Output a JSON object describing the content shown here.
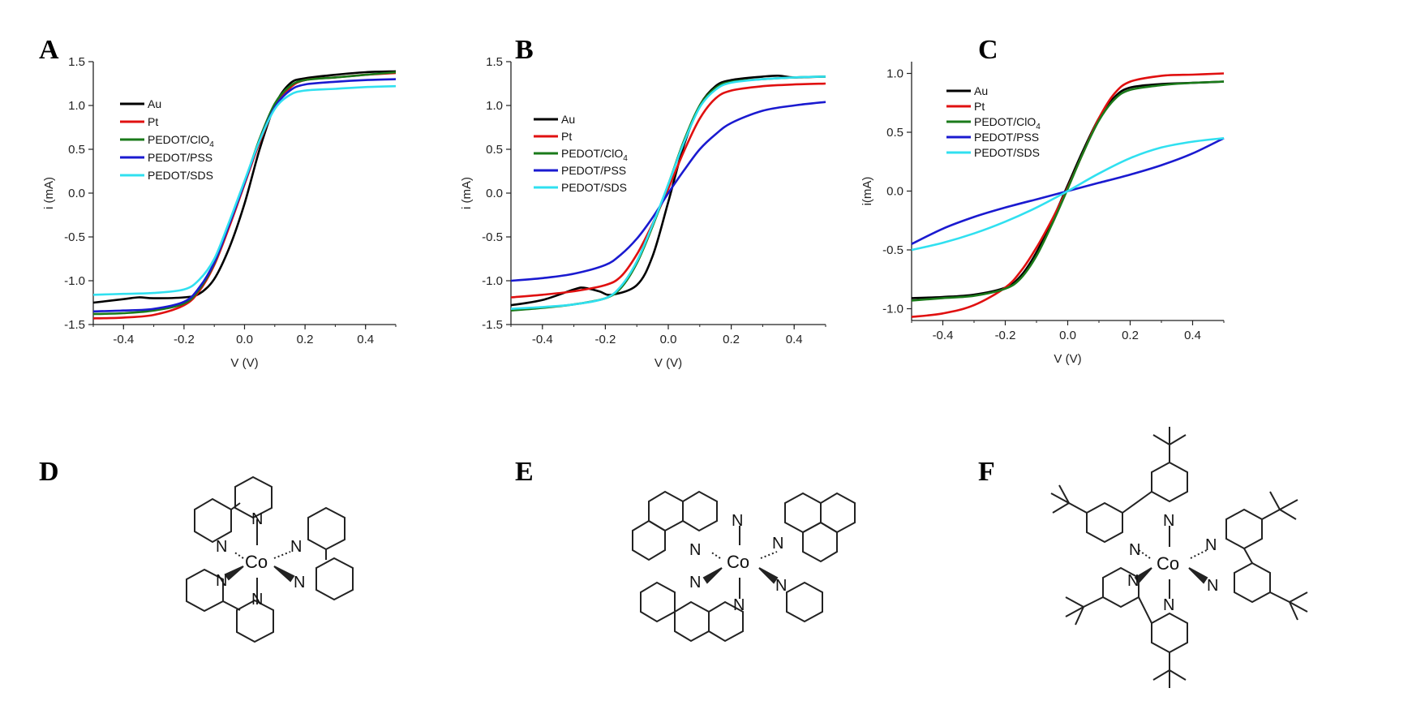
{
  "figure": {
    "panel_labels": [
      "A",
      "B",
      "C",
      "D",
      "E",
      "F"
    ]
  },
  "chart_data": [
    {
      "panel": "A",
      "type": "line",
      "xlabel": "V (V)",
      "ylabel": "i (mA)",
      "xlim": [
        -0.5,
        0.5
      ],
      "ylim": [
        -1.5,
        1.5
      ],
      "xticks": [
        -0.4,
        -0.2,
        0.0,
        0.2,
        0.4
      ],
      "xticklabels": [
        "-0.4",
        "-0.2",
        "0.0",
        "0.2",
        "0.4"
      ],
      "yticks": [
        -1.5,
        -1.0,
        -0.5,
        0.0,
        0.5,
        1.0,
        1.5
      ],
      "yticklabels": [
        "-1.5",
        "-1.0",
        "-0.5",
        "0.0",
        "0.5",
        "1.0",
        "1.5"
      ],
      "legend_position": "upper-left",
      "series": [
        {
          "name": "Au",
          "color": "#000000",
          "x": [
            -0.5,
            -0.4,
            -0.35,
            -0.3,
            -0.2,
            -0.15,
            -0.1,
            -0.05,
            0.0,
            0.05,
            0.1,
            0.15,
            0.2,
            0.3,
            0.4,
            0.5
          ],
          "y": [
            -1.25,
            -1.21,
            -1.19,
            -1.2,
            -1.19,
            -1.15,
            -0.98,
            -0.62,
            -0.12,
            0.5,
            1.0,
            1.25,
            1.31,
            1.35,
            1.38,
            1.39
          ]
        },
        {
          "name": "Pt",
          "color": "#e01010",
          "x": [
            -0.5,
            -0.4,
            -0.3,
            -0.2,
            -0.15,
            -0.1,
            -0.05,
            0.0,
            0.05,
            0.1,
            0.15,
            0.2,
            0.3,
            0.4,
            0.5
          ],
          "y": [
            -1.43,
            -1.42,
            -1.39,
            -1.28,
            -1.12,
            -0.82,
            -0.38,
            0.1,
            0.58,
            0.98,
            1.2,
            1.29,
            1.32,
            1.35,
            1.37
          ]
        },
        {
          "name": "PEDOT/ClO4",
          "color": "#1a7a1a",
          "x": [
            -0.5,
            -0.4,
            -0.3,
            -0.2,
            -0.15,
            -0.1,
            -0.05,
            0.0,
            0.05,
            0.1,
            0.15,
            0.2,
            0.3,
            0.4,
            0.5
          ],
          "y": [
            -1.38,
            -1.37,
            -1.34,
            -1.26,
            -1.1,
            -0.8,
            -0.35,
            0.12,
            0.62,
            1.02,
            1.22,
            1.29,
            1.32,
            1.35,
            1.38
          ]
        },
        {
          "name": "PEDOT/PSS",
          "color": "#1a1ad0",
          "x": [
            -0.5,
            -0.4,
            -0.3,
            -0.2,
            -0.15,
            -0.1,
            -0.05,
            0.0,
            0.05,
            0.1,
            0.15,
            0.2,
            0.3,
            0.4,
            0.5
          ],
          "y": [
            -1.35,
            -1.34,
            -1.32,
            -1.24,
            -1.08,
            -0.79,
            -0.35,
            0.12,
            0.6,
            0.98,
            1.17,
            1.24,
            1.27,
            1.29,
            1.3
          ]
        },
        {
          "name": "PEDOT/SDS",
          "color": "#30e0f0",
          "x": [
            -0.5,
            -0.4,
            -0.3,
            -0.2,
            -0.15,
            -0.1,
            -0.05,
            0.0,
            0.05,
            0.1,
            0.15,
            0.2,
            0.3,
            0.4,
            0.5
          ],
          "y": [
            -1.16,
            -1.15,
            -1.14,
            -1.1,
            -0.99,
            -0.75,
            -0.32,
            0.14,
            0.6,
            0.96,
            1.12,
            1.17,
            1.19,
            1.21,
            1.22
          ]
        }
      ]
    },
    {
      "panel": "B",
      "type": "line",
      "xlabel": "V (V)",
      "ylabel": "i (mA)",
      "xlim": [
        -0.5,
        0.5
      ],
      "ylim": [
        -1.5,
        1.5
      ],
      "xticks": [
        -0.4,
        -0.2,
        0.0,
        0.2,
        0.4
      ],
      "xticklabels": [
        "-0.4",
        "-0.2",
        "0.0",
        "0.2",
        "0.4"
      ],
      "yticks": [
        -1.5,
        -1.0,
        -0.5,
        0.0,
        0.5,
        1.0,
        1.5
      ],
      "yticklabels": [
        "-1.5",
        "-1.0",
        "-0.5",
        "0.0",
        "0.5",
        "1.0",
        "1.5"
      ],
      "legend_position": "middle-left",
      "series": [
        {
          "name": "Au",
          "color": "#000000",
          "x": [
            -0.5,
            -0.4,
            -0.3,
            -0.27,
            -0.22,
            -0.18,
            -0.1,
            -0.05,
            0.0,
            0.05,
            0.1,
            0.15,
            0.2,
            0.3,
            0.35,
            0.4,
            0.5
          ],
          "y": [
            -1.28,
            -1.22,
            -1.1,
            -1.08,
            -1.12,
            -1.16,
            -1.05,
            -0.72,
            -0.1,
            0.55,
            1.0,
            1.22,
            1.29,
            1.33,
            1.34,
            1.32,
            1.33
          ]
        },
        {
          "name": "Pt",
          "color": "#e01010",
          "x": [
            -0.5,
            -0.4,
            -0.3,
            -0.2,
            -0.15,
            -0.1,
            -0.05,
            0.0,
            0.05,
            0.1,
            0.15,
            0.2,
            0.3,
            0.4,
            0.5
          ],
          "y": [
            -1.19,
            -1.16,
            -1.12,
            -1.05,
            -0.95,
            -0.7,
            -0.35,
            0.05,
            0.48,
            0.85,
            1.08,
            1.17,
            1.22,
            1.24,
            1.25
          ]
        },
        {
          "name": "PEDOT/ClO4",
          "color": "#1a7a1a",
          "x": [
            -0.5,
            -0.4,
            -0.3,
            -0.2,
            -0.15,
            -0.1,
            -0.05,
            0.0,
            0.05,
            0.1,
            0.15,
            0.2,
            0.3,
            0.4,
            0.5
          ],
          "y": [
            -1.34,
            -1.31,
            -1.27,
            -1.2,
            -1.08,
            -0.8,
            -0.38,
            0.1,
            0.6,
            1.0,
            1.2,
            1.27,
            1.3,
            1.32,
            1.33
          ]
        },
        {
          "name": "PEDOT/PSS",
          "color": "#1a1ad0",
          "x": [
            -0.5,
            -0.4,
            -0.3,
            -0.2,
            -0.15,
            -0.1,
            -0.05,
            0.0,
            0.05,
            0.1,
            0.15,
            0.2,
            0.3,
            0.4,
            0.5
          ],
          "y": [
            -1.0,
            -0.97,
            -0.92,
            -0.82,
            -0.7,
            -0.52,
            -0.28,
            0.0,
            0.26,
            0.5,
            0.67,
            0.8,
            0.94,
            1.0,
            1.04
          ]
        },
        {
          "name": "PEDOT/SDS",
          "color": "#30e0f0",
          "x": [
            -0.5,
            -0.4,
            -0.3,
            -0.2,
            -0.15,
            -0.1,
            -0.05,
            0.0,
            0.05,
            0.1,
            0.15,
            0.2,
            0.3,
            0.4,
            0.5
          ],
          "y": [
            -1.32,
            -1.3,
            -1.27,
            -1.2,
            -1.06,
            -0.78,
            -0.36,
            0.1,
            0.58,
            0.98,
            1.18,
            1.26,
            1.3,
            1.32,
            1.33
          ]
        }
      ]
    },
    {
      "panel": "C",
      "type": "line",
      "xlabel": "V (V)",
      "ylabel": "i(mA)",
      "xlim": [
        -0.5,
        0.5
      ],
      "ylim": [
        -1.1,
        1.1
      ],
      "xticks": [
        -0.4,
        -0.2,
        0.0,
        0.2,
        0.4
      ],
      "xticklabels": [
        "-0.4",
        "-0.2",
        "0.0",
        "0.2",
        "0.4"
      ],
      "yticks": [
        -1.0,
        -0.5,
        0.0,
        0.5,
        1.0
      ],
      "yticklabels": [
        "-1.0",
        "-0.5",
        "0.0",
        "0.5",
        "1.0"
      ],
      "legend_position": "upper-left",
      "series": [
        {
          "name": "Au",
          "color": "#000000",
          "x": [
            -0.5,
            -0.4,
            -0.3,
            -0.2,
            -0.15,
            -0.1,
            -0.05,
            0.0,
            0.05,
            0.1,
            0.15,
            0.2,
            0.3,
            0.4,
            0.5
          ],
          "y": [
            -0.91,
            -0.9,
            -0.88,
            -0.82,
            -0.72,
            -0.52,
            -0.25,
            0.05,
            0.35,
            0.62,
            0.8,
            0.88,
            0.91,
            0.92,
            0.93
          ]
        },
        {
          "name": "Pt",
          "color": "#e01010",
          "x": [
            -0.5,
            -0.4,
            -0.3,
            -0.2,
            -0.15,
            -0.1,
            -0.05,
            0.0,
            0.05,
            0.1,
            0.15,
            0.2,
            0.3,
            0.4,
            0.5
          ],
          "y": [
            -1.07,
            -1.04,
            -0.97,
            -0.82,
            -0.68,
            -0.48,
            -0.24,
            0.03,
            0.33,
            0.62,
            0.83,
            0.93,
            0.98,
            0.99,
            1.0
          ]
        },
        {
          "name": "PEDOT/ClO4",
          "color": "#1a7a1a",
          "x": [
            -0.5,
            -0.4,
            -0.3,
            -0.2,
            -0.15,
            -0.1,
            -0.05,
            0.0,
            0.05,
            0.1,
            0.15,
            0.2,
            0.3,
            0.4,
            0.5
          ],
          "y": [
            -0.93,
            -0.91,
            -0.89,
            -0.83,
            -0.74,
            -0.55,
            -0.28,
            0.02,
            0.33,
            0.6,
            0.78,
            0.86,
            0.9,
            0.92,
            0.93
          ]
        },
        {
          "name": "PEDOT/PSS",
          "color": "#1a1ad0",
          "x": [
            -0.5,
            -0.4,
            -0.3,
            -0.2,
            -0.1,
            0.0,
            0.1,
            0.2,
            0.3,
            0.4,
            0.5
          ],
          "y": [
            -0.45,
            -0.32,
            -0.22,
            -0.14,
            -0.07,
            0.0,
            0.07,
            0.14,
            0.22,
            0.32,
            0.45
          ]
        },
        {
          "name": "PEDOT/SDS",
          "color": "#30e0f0",
          "x": [
            -0.5,
            -0.4,
            -0.3,
            -0.2,
            -0.1,
            0.0,
            0.1,
            0.2,
            0.3,
            0.4,
            0.5
          ],
          "y": [
            -0.5,
            -0.44,
            -0.36,
            -0.26,
            -0.14,
            0.0,
            0.15,
            0.28,
            0.37,
            0.42,
            0.45
          ]
        }
      ]
    }
  ],
  "molecules": [
    {
      "panel": "D",
      "metal": "Co",
      "ligand": "bipyridine",
      "atom_label": "N"
    },
    {
      "panel": "E",
      "metal": "Co",
      "ligand": "phenanthroline",
      "atom_label": "N"
    },
    {
      "panel": "F",
      "metal": "Co",
      "ligand": "4,4'-di-tert-butyl-bipyridine",
      "atom_label": "N"
    }
  ]
}
